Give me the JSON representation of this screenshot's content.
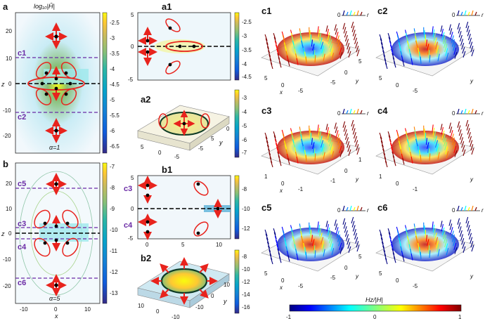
{
  "panel_a": {
    "label": "a",
    "colorbar_title": "log₁₀|Ĥ|",
    "colorbar_ticks": [
      "-2.5",
      "-3",
      "-3.5",
      "-4",
      "-4.5",
      "-5",
      "-5.5",
      "-6",
      "-6.5"
    ],
    "y_ticks": [
      "20",
      "10",
      "0",
      "-10",
      "-20"
    ],
    "x_ticks": [
      "-10",
      "0",
      "10"
    ],
    "z_label": "z",
    "alpha_text": "α=1",
    "cut_labels": [
      "c1",
      "c2"
    ]
  },
  "panel_b": {
    "label": "b",
    "colorbar_ticks": [
      "-7",
      "-8",
      "-9",
      "-10",
      "-11",
      "-12",
      "-13"
    ],
    "y_ticks": [
      "20",
      "10",
      "0",
      "-10",
      "-20"
    ],
    "x_ticks": [
      "-10",
      "0",
      "10"
    ],
    "x_label": "x",
    "z_label": "z",
    "alpha_text": "α=5",
    "cut_labels": [
      "c5",
      "c3",
      "c4",
      "c6"
    ]
  },
  "panel_a1": {
    "label": "a1",
    "colorbar_ticks": [
      "-2.5",
      "-3",
      "-3.5",
      "-4",
      "-4.5"
    ],
    "y_ticks": [
      "5",
      "0",
      "-5"
    ]
  },
  "panel_a2": {
    "label": "a2",
    "colorbar_ticks": [
      "-3",
      "-4",
      "-5",
      "-6",
      "-7"
    ],
    "axis_ticks": [
      "5",
      "0",
      "-5",
      "0",
      "5",
      "-5"
    ],
    "y_label": "y"
  },
  "panel_b1": {
    "label": "b1",
    "colorbar_ticks": [
      "-8",
      "-10",
      "-12"
    ],
    "y_ticks": [
      "5",
      "0",
      "-5"
    ],
    "x_ticks": [
      "0",
      "5",
      "10"
    ],
    "side_labels": [
      "c3",
      "c4"
    ]
  },
  "panel_b2": {
    "label": "b2",
    "colorbar_ticks": [
      "-8",
      "-10",
      "-12",
      "-14",
      "-16"
    ],
    "axis_ticks": [
      "10",
      "0",
      "-10",
      "10",
      "0",
      "-10"
    ],
    "y_label": "y"
  },
  "panels_c": [
    {
      "label": "c1",
      "axis_ticks": [
        "5",
        "0",
        "-5",
        "5",
        "0",
        "-5"
      ],
      "x_label": "x",
      "y_label": "y",
      "inset": {
        "zero": "0",
        "r": "r"
      }
    },
    {
      "label": "c2",
      "axis_ticks": [
        "5",
        "0",
        "-5"
      ],
      "y_label": "y",
      "inset": {
        "zero": "0",
        "r": "r"
      }
    },
    {
      "label": "c3",
      "axis_ticks": [
        "1",
        "0",
        "-1",
        "1",
        "0",
        "-1"
      ],
      "x_label": "x",
      "y_label": "y",
      "inset": {
        "zero": "0",
        "r": "r"
      }
    },
    {
      "label": "c4",
      "axis_ticks": [
        "1",
        "0",
        "-1"
      ],
      "y_label": "y",
      "inset": {
        "zero": "0",
        "r": "r"
      }
    },
    {
      "label": "c5",
      "axis_ticks": [
        "5",
        "0",
        "-5",
        "5",
        "0",
        "-5"
      ],
      "x_label": "x",
      "y_label": "y",
      "inset": {
        "zero": "0",
        "r": "r"
      }
    },
    {
      "label": "c6",
      "axis_ticks": [
        "5",
        "0",
        "-5"
      ],
      "y_label": "y",
      "inset": {
        "zero": "0",
        "r": "r"
      }
    }
  ],
  "colorbar_h": {
    "title": "Hz/|H|",
    "ticks": [
      "-1",
      "0",
      "1"
    ]
  },
  "colors": {
    "parula": [
      "#352a87",
      "#0f5cdd",
      "#1481d6",
      "#06a4ca",
      "#2eb7a4",
      "#87bf77",
      "#d1bb59",
      "#fec832",
      "#f9fb0e"
    ],
    "jet": [
      "#00007f",
      "#0000ff",
      "#007fff",
      "#00ffff",
      "#7fff7f",
      "#ffff00",
      "#ff7f00",
      "#ff0000",
      "#7f0000"
    ],
    "arrow_red": "#e8231d",
    "cut_purple": "#6a2aa5",
    "highlight_cyan": "#9ee8ec"
  }
}
